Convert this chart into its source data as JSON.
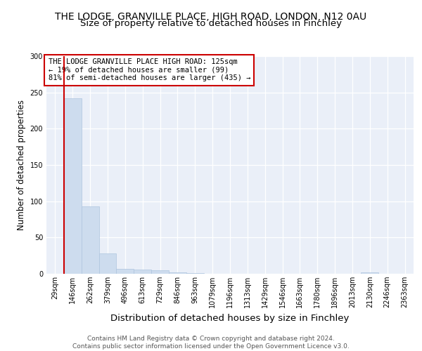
{
  "title": "THE LODGE, GRANVILLE PLACE, HIGH ROAD, LONDON, N12 0AU",
  "subtitle": "Size of property relative to detached houses in Finchley",
  "xlabel": "Distribution of detached houses by size in Finchley",
  "ylabel": "Number of detached properties",
  "bin_labels": [
    "29sqm",
    "146sqm",
    "262sqm",
    "379sqm",
    "496sqm",
    "613sqm",
    "729sqm",
    "846sqm",
    "963sqm",
    "1079sqm",
    "1196sqm",
    "1313sqm",
    "1429sqm",
    "1546sqm",
    "1663sqm",
    "1780sqm",
    "1896sqm",
    "2013sqm",
    "2130sqm",
    "2246sqm",
    "2363sqm"
  ],
  "bar_values": [
    0,
    242,
    93,
    28,
    7,
    6,
    5,
    2,
    1,
    0,
    0,
    0,
    0,
    0,
    0,
    0,
    0,
    0,
    2,
    0,
    0
  ],
  "bar_color": "#cddcee",
  "bar_edge_color": "#aec4de",
  "vline_color": "#cc0000",
  "annotation_text": "THE LODGE GRANVILLE PLACE HIGH ROAD: 125sqm\n← 19% of detached houses are smaller (99)\n81% of semi-detached houses are larger (435) →",
  "annotation_box_color": "#ffffff",
  "annotation_box_edge_color": "#cc0000",
  "ylim": [
    0,
    300
  ],
  "yticks": [
    0,
    50,
    100,
    150,
    200,
    250,
    300
  ],
  "bg_color": "#eaeff8",
  "footer_line1": "Contains HM Land Registry data © Crown copyright and database right 2024.",
  "footer_line2": "Contains public sector information licensed under the Open Government Licence v3.0.",
  "title_fontsize": 10,
  "subtitle_fontsize": 9.5,
  "tick_fontsize": 7,
  "ylabel_fontsize": 8.5,
  "xlabel_fontsize": 9.5,
  "annotation_fontsize": 7.5,
  "footer_fontsize": 6.5
}
